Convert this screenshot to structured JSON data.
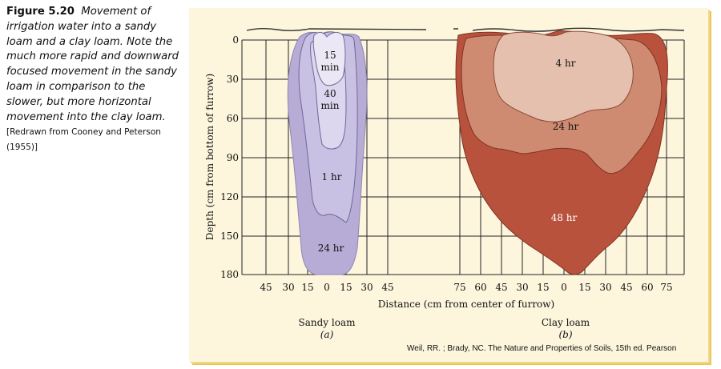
{
  "caption": {
    "label": "Figure 5.20",
    "text": "Movement of irrigation water into a sandy loam and a clay loam. Note the much more rapid and downward focused movement in the sandy loam in comparison to the slower, but more horizontal movement into the clay loam.",
    "source": "[Redrawn from Cooney and Peterson (1955)]"
  },
  "axes": {
    "y_label": "Depth (cm from bottom of furrow)",
    "y_ticks": [
      "0",
      "30",
      "60",
      "90",
      "120",
      "150",
      "180"
    ],
    "x_label": "Distance (cm from center of furrow)",
    "x_ticks_sandy": [
      "45",
      "30",
      "15",
      "0",
      "15",
      "30",
      "45"
    ],
    "x_ticks_clay": [
      "75",
      "60",
      "45",
      "30",
      "15",
      "0",
      "15",
      "30",
      "45",
      "60",
      "75"
    ]
  },
  "panels": {
    "sandy": {
      "title": "Sandy loam",
      "letter": "(a)",
      "fronts": [
        {
          "label_line1": "15",
          "label_line2": "min"
        },
        {
          "label_line1": "40",
          "label_line2": "min"
        },
        {
          "label_line1": "1 hr",
          "label_line2": ""
        },
        {
          "label_line1": "24 hr",
          "label_line2": ""
        }
      ]
    },
    "clay": {
      "title": "Clay loam",
      "letter": "(b)",
      "fronts": [
        {
          "label": "4 hr"
        },
        {
          "label": "24 hr"
        },
        {
          "label": "48 hr"
        }
      ]
    }
  },
  "colors": {
    "sandy_24hr": "#b6acd6",
    "sandy_1hr": "#c9c1e3",
    "sandy_40min": "#dcd6ee",
    "sandy_15min": "#ebe7f5",
    "clay_48hr": "#b8523c",
    "clay_24hr": "#cf8b72",
    "clay_4hr": "#e6c0ae"
  },
  "credit": "Weil, RR. ; Brady, NC. The Nature and Properties of Soils, 15th ed. Pearson"
}
